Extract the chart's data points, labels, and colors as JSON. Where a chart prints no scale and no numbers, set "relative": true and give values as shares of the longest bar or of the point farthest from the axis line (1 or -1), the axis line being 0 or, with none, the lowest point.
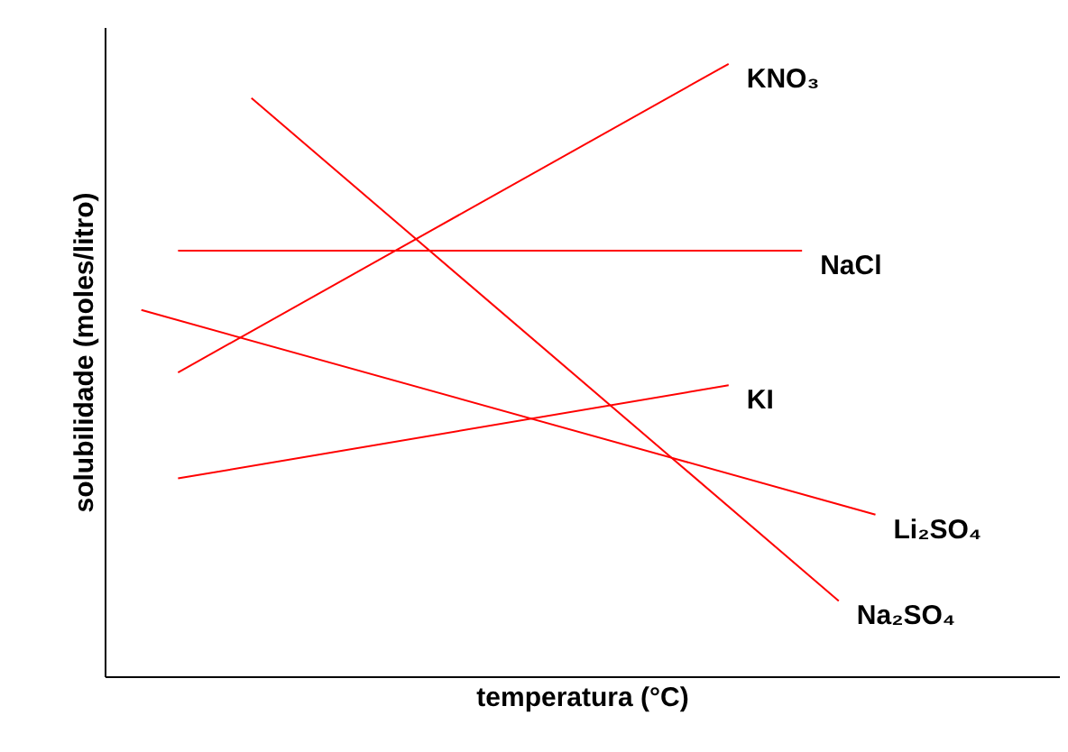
{
  "chart_data": {
    "type": "line",
    "relative": true,
    "xlabel": "temperatura (°C)",
    "ylabel": "solubilidade (moles/litro)",
    "tick_labels": false,
    "categories": [
      null,
      null,
      null,
      null,
      null,
      null,
      null,
      null,
      null,
      null,
      null,
      null,
      null,
      null,
      null,
      null,
      null,
      null,
      null,
      null,
      null,
      null,
      null,
      null,
      null,
      null,
      null
    ],
    "series": [
      {
        "name": "KNO₃",
        "color": "#ff0000",
        "values": [
          null,
          null,
          0.496,
          null,
          null,
          null,
          null,
          null,
          null,
          null,
          null,
          null,
          null,
          null,
          null,
          null,
          null,
          1,
          null,
          null,
          null,
          null,
          null,
          null,
          null,
          null,
          null
        ]
      },
      {
        "name": "NaCl",
        "color": "#ff0000",
        "values": [
          null,
          null,
          0.695,
          null,
          null,
          null,
          null,
          null,
          null,
          null,
          null,
          null,
          null,
          null,
          null,
          null,
          null,
          null,
          null,
          0.695,
          null,
          null,
          null,
          null,
          null,
          null,
          null
        ]
      },
      {
        "name": "KI",
        "color": "#ff0000",
        "values": [
          null,
          null,
          0.323,
          null,
          null,
          null,
          null,
          null,
          null,
          null,
          null,
          null,
          null,
          null,
          null,
          null,
          null,
          0.475,
          null,
          null,
          null,
          null,
          null,
          null,
          null,
          null,
          null
        ]
      },
      {
        "name": "Li₂SO₄",
        "color": "#ff0000",
        "values": [
          null,
          0.598,
          null,
          null,
          null,
          null,
          null,
          null,
          null,
          null,
          null,
          null,
          null,
          null,
          null,
          null,
          null,
          null,
          null,
          null,
          null,
          0.264,
          null,
          null,
          null,
          null,
          null
        ]
      },
      {
        "name": "Na₂SO₄",
        "color": "#ff0000",
        "values": [
          null,
          null,
          null,
          null,
          0.944,
          null,
          null,
          null,
          null,
          null,
          null,
          null,
          null,
          null,
          null,
          null,
          null,
          null,
          null,
          null,
          0.123,
          null,
          null,
          null,
          null,
          null,
          null
        ]
      }
    ]
  }
}
